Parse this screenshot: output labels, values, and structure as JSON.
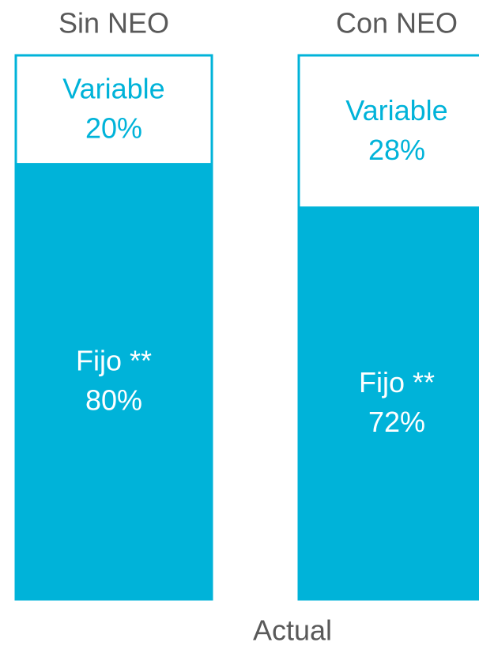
{
  "chart_data": {
    "type": "stacked_bar",
    "categories": [
      "Sin NEO",
      "Con NEO"
    ],
    "x_label": "Actual",
    "series": [
      {
        "name": "Fijo **",
        "color": "#00b3d9",
        "label_color": "#ffffff",
        "values": [
          80,
          72
        ],
        "value_labels": [
          "80%",
          "72%"
        ]
      },
      {
        "name": "Variable",
        "color": "#ffffff",
        "label_color": "#00b3d9",
        "values": [
          20,
          28
        ],
        "value_labels": [
          "20%",
          "28%"
        ]
      }
    ],
    "border_color": "#00b3d9"
  }
}
